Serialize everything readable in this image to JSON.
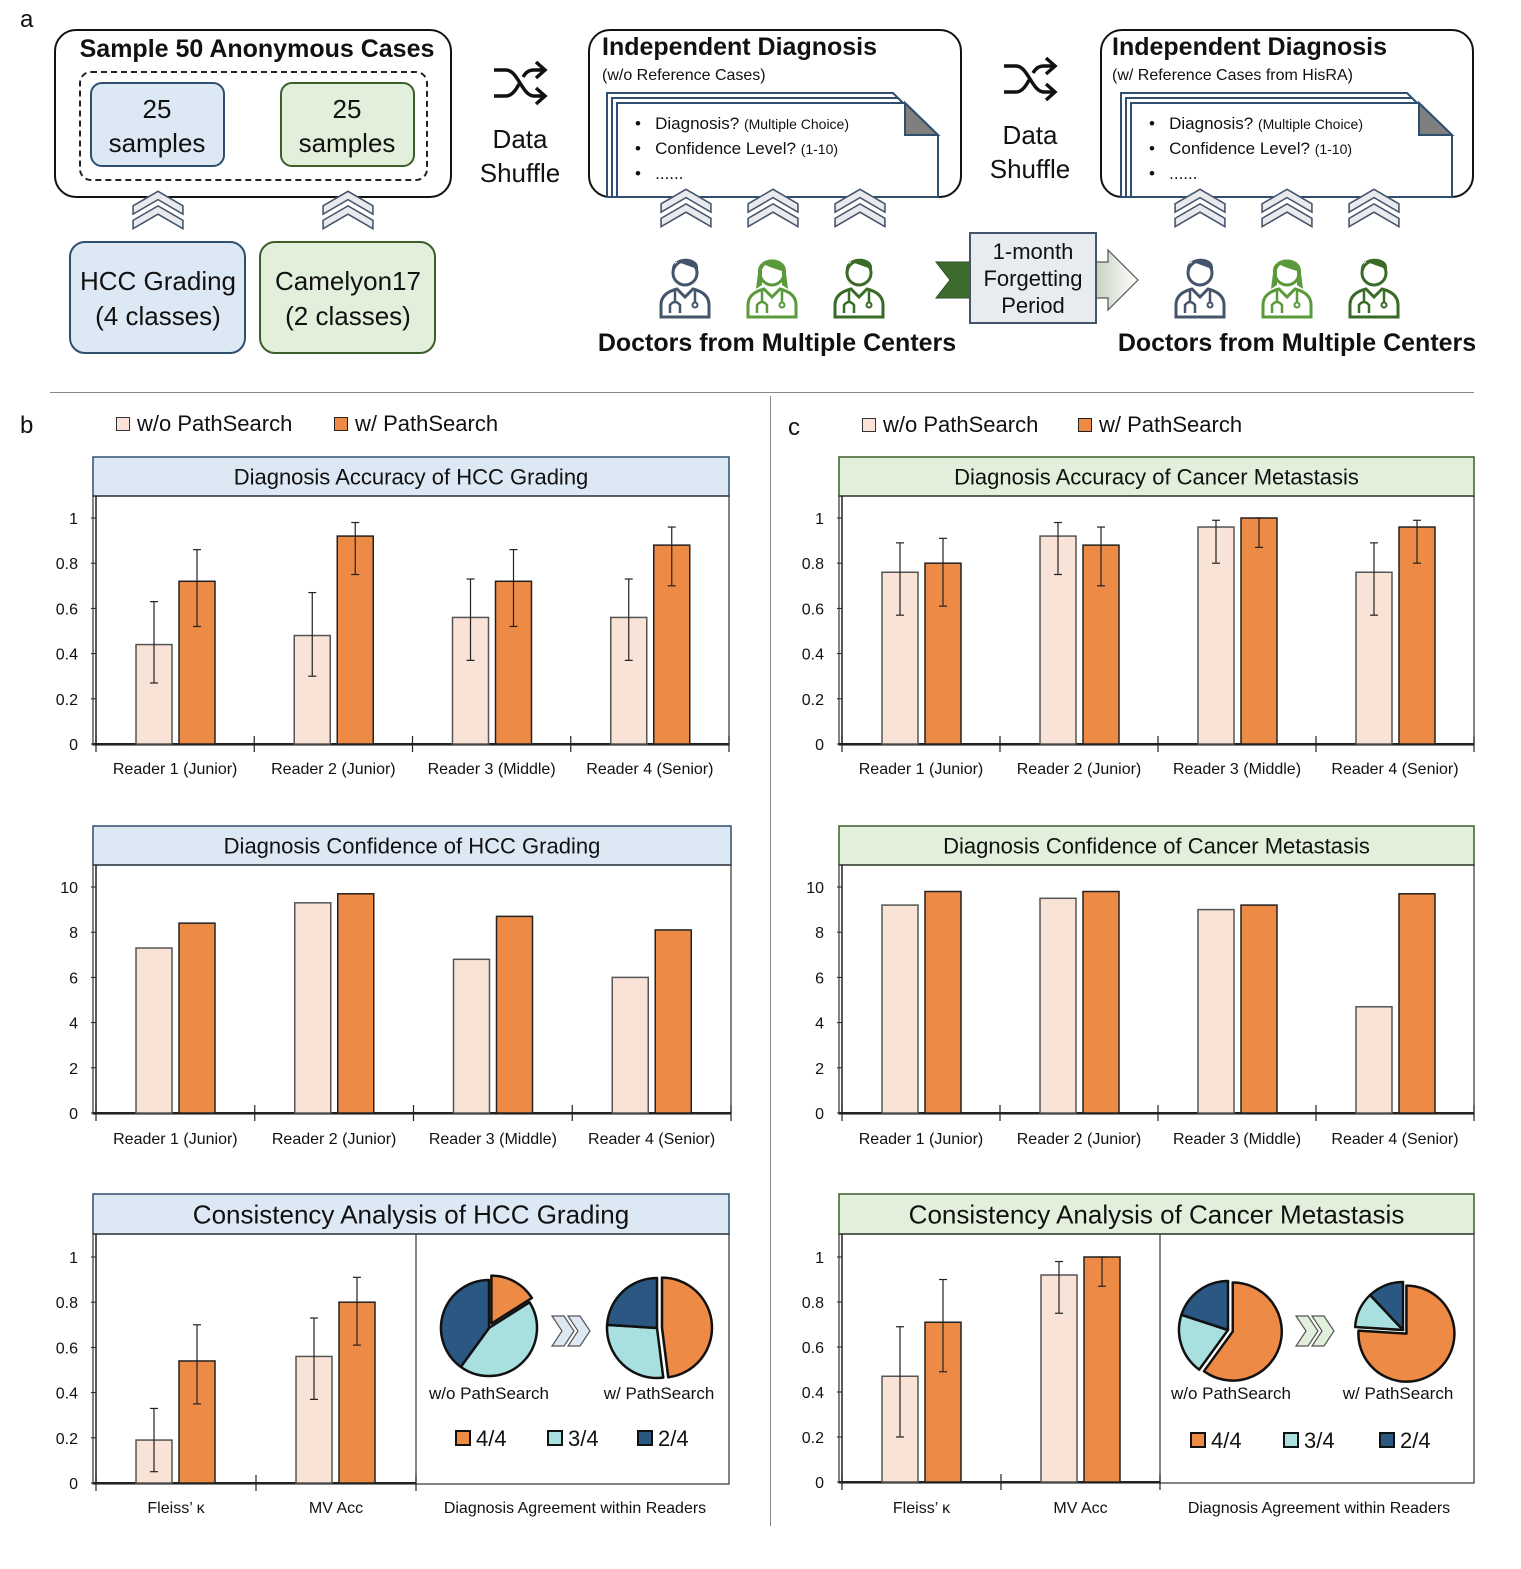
{
  "panel_labels": {
    "a": "a",
    "b": "b",
    "c": "c"
  },
  "colors": {
    "without": "#f8e3d6",
    "with": "#ed8a46",
    "hcc_title_fill": "#dde8f5",
    "meta_title_fill": "#e2efda",
    "pie_4of4": "#ed8a46",
    "pie_3of4": "#a8dfdf",
    "pie_2of4": "#2b5882",
    "doctor_1": "#44546a",
    "doctor_2": "#5b9a3a",
    "doctor_3": "#3a6b26"
  },
  "workflow": {
    "sample_box": {
      "title": "Sample 50 Anonymous Cases",
      "left": [
        "25",
        "samples"
      ],
      "right": [
        "25",
        "samples"
      ]
    },
    "datasets": [
      {
        "line1": "HCC Grading",
        "line2": "(4 classes)"
      },
      {
        "line1": "Camelyon17",
        "line2": "(2 classes)"
      }
    ],
    "shuffle": {
      "icon": "shuffle-icon",
      "line1": "Data",
      "line2": "Shuffle"
    },
    "diagnosis_1": {
      "title": "Independent Diagnosis",
      "subtitle": "(w/o Reference Cases)"
    },
    "diagnosis_2": {
      "title": "Independent Diagnosis",
      "subtitle": "(w/ Reference Cases from HisRA)"
    },
    "questions": [
      {
        "main": "Diagnosis?",
        "note": "(Multiple Choice)"
      },
      {
        "main": "Confidence Level?",
        "note": "(1-10)"
      },
      {
        "main": "......",
        "note": ""
      }
    ],
    "bullet": "•",
    "doctors_label": "Doctors from Multiple Centers",
    "forgetting": [
      "1-month",
      "Forgetting",
      "Period"
    ]
  },
  "legend": {
    "without": "w/o PathSearch",
    "with": "w/ PathSearch"
  },
  "chart_data": [
    {
      "type": "bar",
      "title": "Diagnosis Accuracy of HCC Grading",
      "panel": "b",
      "categories": [
        "Reader 1 (Junior)",
        "Reader 2 (Junior)",
        "Reader 3 (Middle)",
        "Reader 4 (Senior)"
      ],
      "ylim": [
        0,
        1
      ],
      "yticks": [
        0,
        0.2,
        0.4,
        0.6,
        0.8,
        1
      ],
      "ytick_labels": [
        "0",
        "0.2",
        "0.4",
        "0.6",
        "0.8",
        "1"
      ],
      "series": [
        {
          "name": "w/o PathSearch",
          "values": [
            0.44,
            0.48,
            0.56,
            0.56
          ],
          "err_low": [
            0.27,
            0.3,
            0.37,
            0.37
          ],
          "err_high": [
            0.63,
            0.67,
            0.73,
            0.73
          ]
        },
        {
          "name": "w/ PathSearch",
          "values": [
            0.72,
            0.92,
            0.72,
            0.88
          ],
          "err_low": [
            0.52,
            0.75,
            0.52,
            0.7
          ],
          "err_high": [
            0.86,
            0.98,
            0.86,
            0.96
          ]
        }
      ]
    },
    {
      "type": "bar",
      "title": "Diagnosis Confidence of HCC Grading",
      "panel": "b",
      "categories": [
        "Reader 1 (Junior)",
        "Reader 2 (Junior)",
        "Reader 3 (Middle)",
        "Reader 4 (Senior)"
      ],
      "ylim": [
        0,
        10
      ],
      "yticks": [
        0,
        2,
        4,
        6,
        8,
        10
      ],
      "ytick_labels": [
        "0",
        "2",
        "4",
        "6",
        "8",
        "10"
      ],
      "series": [
        {
          "name": "w/o PathSearch",
          "values": [
            7.3,
            9.3,
            6.8,
            6.0
          ]
        },
        {
          "name": "w/ PathSearch",
          "values": [
            8.4,
            9.7,
            8.7,
            8.1
          ]
        }
      ]
    },
    {
      "type": "bar",
      "title": "Consistency Analysis of HCC Grading",
      "panel": "b",
      "categories": [
        "Fleiss’ κ",
        "MV Acc"
      ],
      "ylim": [
        0,
        1
      ],
      "yticks": [
        0,
        0.2,
        0.4,
        0.6,
        0.8,
        1
      ],
      "ytick_labels": [
        "0",
        "0.2",
        "0.4",
        "0.6",
        "0.8",
        "1"
      ],
      "series": [
        {
          "name": "w/o PathSearch",
          "values": [
            0.19,
            0.56
          ],
          "err_low": [
            0.05,
            0.37
          ],
          "err_high": [
            0.33,
            0.73
          ]
        },
        {
          "name": "w/ PathSearch",
          "values": [
            0.54,
            0.8
          ],
          "err_low": [
            0.35,
            0.61
          ],
          "err_high": [
            0.7,
            0.91
          ]
        }
      ]
    },
    {
      "type": "bar",
      "title": "Diagnosis Accuracy of Cancer Metastasis",
      "panel": "c",
      "categories": [
        "Reader 1 (Junior)",
        "Reader 2 (Junior)",
        "Reader 3 (Middle)",
        "Reader 4 (Senior)"
      ],
      "ylim": [
        0,
        1
      ],
      "yticks": [
        0,
        0.2,
        0.4,
        0.6,
        0.8,
        1
      ],
      "ytick_labels": [
        "0",
        "0.2",
        "0.4",
        "0.6",
        "0.8",
        "1"
      ],
      "series": [
        {
          "name": "w/o PathSearch",
          "values": [
            0.76,
            0.92,
            0.96,
            0.76
          ],
          "err_low": [
            0.57,
            0.75,
            0.8,
            0.57
          ],
          "err_high": [
            0.89,
            0.98,
            0.99,
            0.89
          ]
        },
        {
          "name": "w/ PathSearch",
          "values": [
            0.8,
            0.88,
            1.0,
            0.96
          ],
          "err_low": [
            0.61,
            0.7,
            0.87,
            0.8
          ],
          "err_high": [
            0.91,
            0.96,
            1.0,
            0.99
          ]
        }
      ]
    },
    {
      "type": "bar",
      "title": "Diagnosis Confidence of Cancer Metastasis",
      "panel": "c",
      "categories": [
        "Reader 1 (Junior)",
        "Reader 2 (Junior)",
        "Reader 3 (Middle)",
        "Reader 4 (Senior)"
      ],
      "ylim": [
        0,
        10
      ],
      "yticks": [
        0,
        2,
        4,
        6,
        8,
        10
      ],
      "ytick_labels": [
        "0",
        "2",
        "4",
        "6",
        "8",
        "10"
      ],
      "series": [
        {
          "name": "w/o PathSearch",
          "values": [
            9.2,
            9.5,
            9.0,
            4.7
          ]
        },
        {
          "name": "w/ PathSearch",
          "values": [
            9.8,
            9.8,
            9.2,
            9.7
          ]
        }
      ]
    },
    {
      "type": "bar",
      "title": "Consistency Analysis of Cancer Metastasis",
      "panel": "c",
      "categories": [
        "Fleiss’ κ",
        "MV Acc"
      ],
      "ylim": [
        0,
        1
      ],
      "yticks": [
        0,
        0.2,
        0.4,
        0.6,
        0.8,
        1
      ],
      "ytick_labels": [
        "0",
        "0.2",
        "0.4",
        "0.6",
        "0.8",
        "1"
      ],
      "series": [
        {
          "name": "w/o PathSearch",
          "values": [
            0.47,
            0.92
          ],
          "err_low": [
            0.2,
            0.75
          ],
          "err_high": [
            0.69,
            0.98
          ]
        },
        {
          "name": "w/ PathSearch",
          "values": [
            0.71,
            1.0
          ],
          "err_low": [
            0.49,
            0.87
          ],
          "err_high": [
            0.9,
            1.0
          ]
        }
      ]
    },
    {
      "type": "pie",
      "panel": "b",
      "xlabel": "Diagnosis Agreement within Readers",
      "legend": [
        "4/4",
        "3/4",
        "2/4"
      ],
      "pies": [
        {
          "label": "w/o PathSearch",
          "values": [
            0.16,
            0.44,
            0.4
          ]
        },
        {
          "label": "w/ PathSearch",
          "values": [
            0.48,
            0.28,
            0.24
          ]
        }
      ]
    },
    {
      "type": "pie",
      "panel": "c",
      "xlabel": "Diagnosis Agreement within Readers",
      "legend": [
        "4/4",
        "3/4",
        "2/4"
      ],
      "pies": [
        {
          "label": "w/o PathSearch",
          "values": [
            0.6,
            0.2,
            0.2
          ]
        },
        {
          "label": "w/ PathSearch",
          "values": [
            0.76,
            0.12,
            0.12
          ]
        }
      ]
    }
  ]
}
